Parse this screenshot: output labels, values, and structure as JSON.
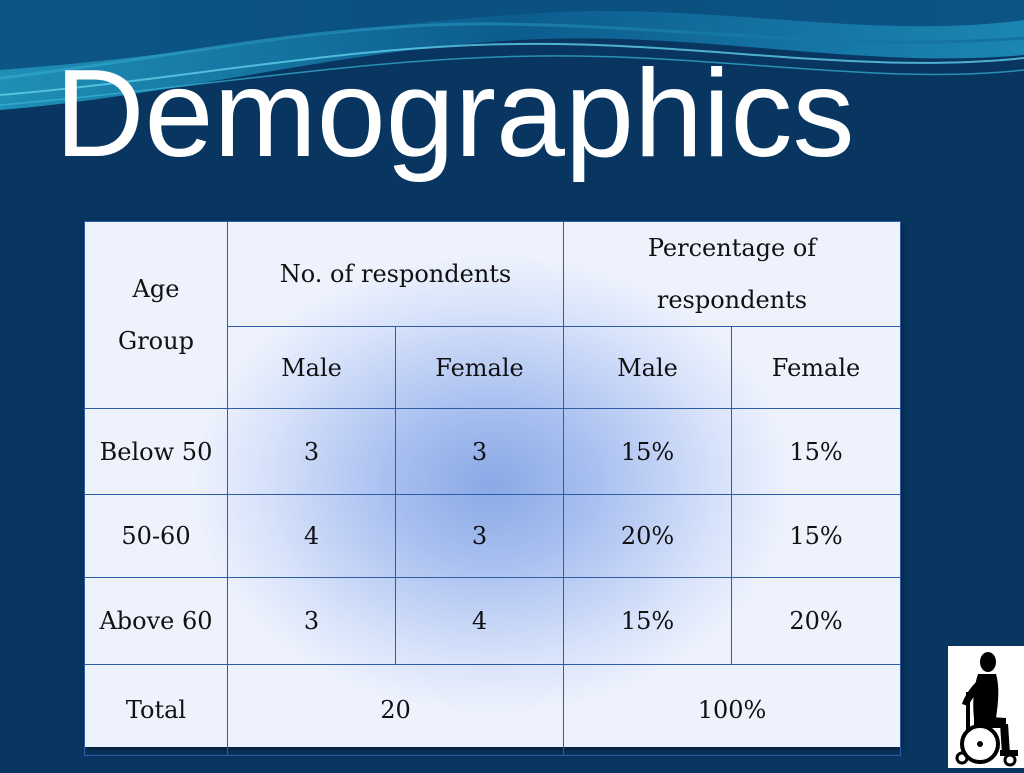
{
  "slide": {
    "title": "Demographics"
  },
  "table": {
    "headers": {
      "age_group_line1": "Age",
      "age_group_line2": "Group",
      "respondents": "No. of respondents",
      "percentage_line1": "Percentage of",
      "percentage_line2": "respondents",
      "male_1": "Male",
      "female_1": "Female",
      "male_2": "Male",
      "female_2": "Female"
    },
    "rows": [
      {
        "age": "Below 50",
        "male_count": "3",
        "female_count": "3",
        "male_pct": "15%",
        "female_pct": "15%"
      },
      {
        "age": "50-60",
        "male_count": "4",
        "female_count": "3",
        "male_pct": "20%",
        "female_pct": "15%"
      },
      {
        "age": "Above 60",
        "male_count": "3",
        "female_count": "4",
        "male_pct": "15%",
        "female_pct": "20%"
      }
    ],
    "total": {
      "label": "Total",
      "count": "20",
      "percentage": "100%"
    }
  },
  "colors": {
    "background": "#083661",
    "table_border": "#2e5da6",
    "title_text": "#ffffff"
  },
  "icons": {
    "logo": "wheelchair-person-icon"
  }
}
